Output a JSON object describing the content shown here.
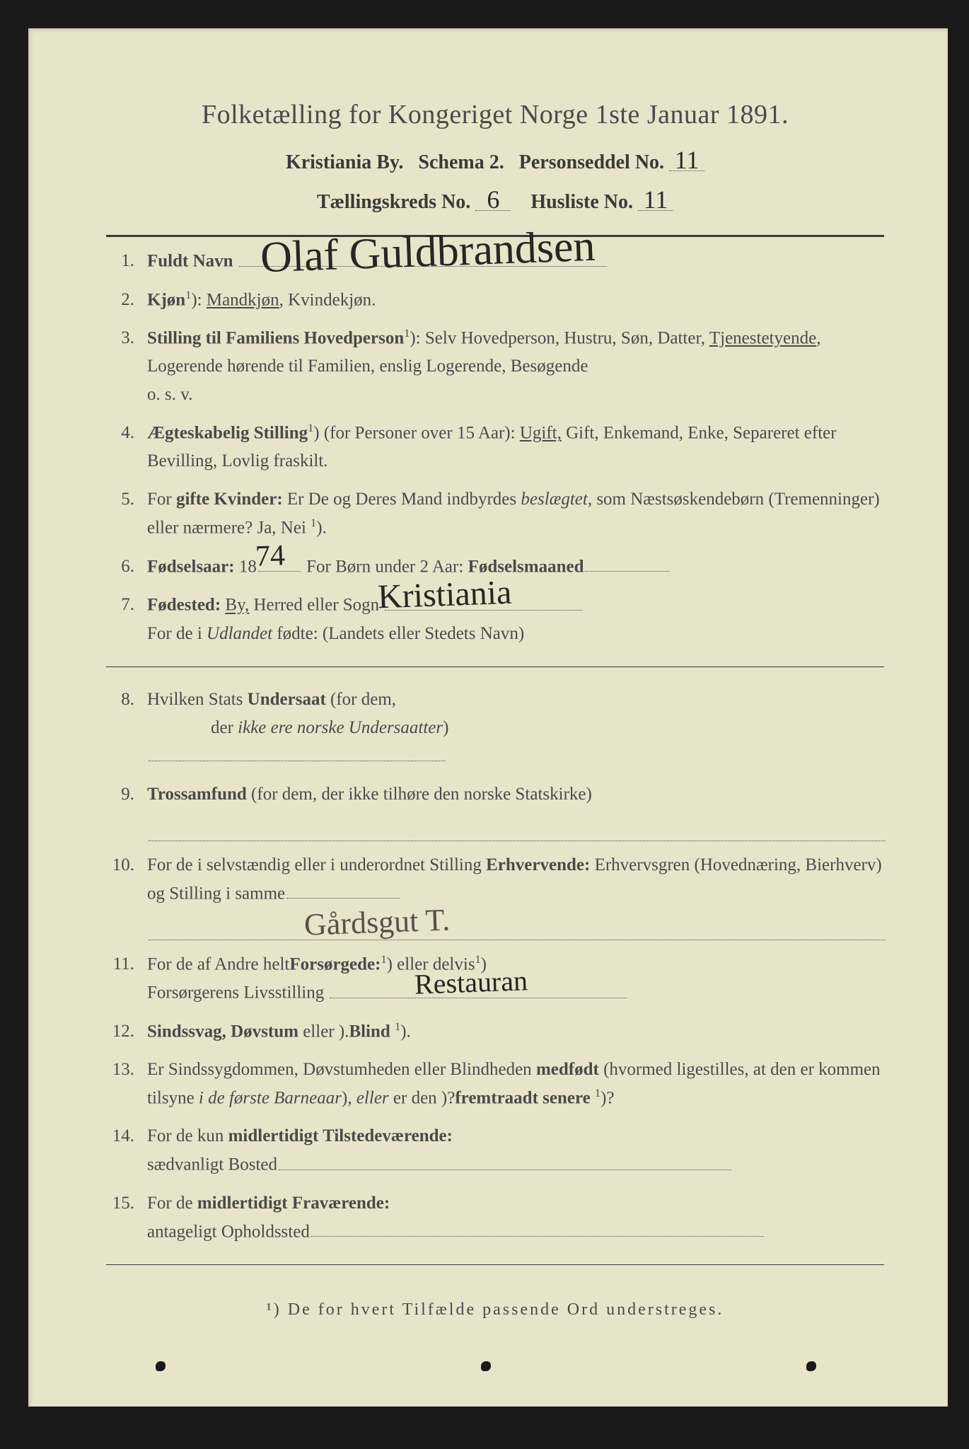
{
  "colors": {
    "paper_bg": "#e8e4ca",
    "frame_bg": "#1a1a1a",
    "print_text": "#4a4a48",
    "ink_text": "#2a2520",
    "divider": "#3a3a38"
  },
  "typography": {
    "title_size_pt": 38,
    "body_size_pt": 25,
    "handwriting_family": "Brush Script MT"
  },
  "header": {
    "title": "Folketælling for Kongeriget Norge 1ste Januar 1891.",
    "city": "Kristiania By.",
    "schema": "Schema 2.",
    "person_label": "Personseddel No.",
    "person_no": "11",
    "district_label": "Tællingskreds No.",
    "district_no": "6",
    "houselist_label": "Husliste No.",
    "houselist_no": "11"
  },
  "responses": {
    "name": "Olaf Guldbrandsen",
    "birth_year_suffix": "74",
    "birthplace": "Kristiania",
    "occupation": "Gårdsgut T.",
    "provider": "Restauran"
  },
  "fields": [
    {
      "num": "1.",
      "label_bold": "Fuldt Navn",
      "has_name": true
    },
    {
      "num": "2.",
      "label_bold": "Kjøn",
      "sup": "1",
      "rest": "): ",
      "options_html": "<span class='underline'>Mandkjøn</span>, Kvindekjøn."
    },
    {
      "num": "3.",
      "label_bold": "Stilling til Familiens Hovedperson",
      "sup": "1",
      "rest": "): Selv Hovedperson, Hustru, Søn, Datter, <span class='underline'>Tjenestetyende</span>, Logerende hørende til Familien, enslig Logerende, Besøgende<br>o. s. v."
    },
    {
      "num": "4.",
      "label_bold": "Ægteskabelig Stilling",
      "sup": "1",
      "rest": ") (for Personer over 15 Aar): <span class='underline'>Ugift,</span> Gift, Enkemand, Enke, Separeret efter Bevilling, Lovlig fraskilt."
    },
    {
      "num": "5.",
      "plain": "For ",
      "label_bold": "gifte Kvinder:",
      "rest": " Er De og Deres Mand indbyrdes <span class='ital'>beslægtet</span>, som Næstsøskendebørn (Tremenninger) eller nærmere?  Ja, Nei <span class='sup'>1</span>)."
    },
    {
      "num": "6.",
      "label_bold": "Fødselsaar:",
      "year_prefix": " 18",
      "year_fill": true,
      "rest2": "  For Børn under 2 Aar: ",
      "label_bold2": "Fødselsmaaned",
      "trail_dots": true
    },
    {
      "num": "7.",
      "label_bold": "Fødested:",
      "rest_html": " <span class='underline'>By,</span> Herred eller Sogn ",
      "place_fill": true,
      "line2": "For de i <span class='ital'>Udlandet</span> fødte: (Landets eller Stedets Navn)"
    },
    {
      "num": "8.",
      "plain": "Hvilken Stats ",
      "label_bold": "Undersaat",
      "rest": " (for dem,<br><span class='indent'>der <span class='ital'>ikke ere norske Undersaatter</span>)</span>",
      "trail_dots_long": true
    },
    {
      "num": "9.",
      "label_bold": "Trossamfund",
      "rest": "  (for dem, der ikke tilhøre den norske Statskirke)",
      "trail_dots_full": true
    },
    {
      "num": "10.",
      "plain": "For de i selvstændig eller i underordnet Stilling ",
      "label_bold": "Erhvervende:",
      "rest": " Erhvervsgren (Hovednæring, Bierhverv) og Stilling i samme",
      "occupation_lines": true
    },
    {
      "num": "11.",
      "plain": "For de af Andre helt",
      "sup": "1",
      "rest": ") eller delvis<span class='sup'>1</span>) ",
      "label_bold": "Forsørgede:",
      "line2_plain": "Forsørgerens Livsstilling ",
      "provider_fill": true
    },
    {
      "num": "12.",
      "label_bold": "Sindssvag, Døvstum",
      "rest": " eller ",
      "label_bold2": "Blind",
      "sup2": "1",
      "rest2": ")."
    },
    {
      "num": "13.",
      "plain": "Er Sindssygdommen, Døvstumheden eller Blindheden ",
      "label_bold": "medfødt",
      "rest": " (hvormed ligestilles, at den er kommen tilsyne <span class='ital'>i de første Barneaar</span>), <span class='ital'>eller</span> er den ",
      "label_bold2": "fremtraadt senere",
      "sup2": "1",
      "rest2": ")?"
    },
    {
      "num": "14.",
      "plain": "For de kun ",
      "label_bold": "midlertidigt Tilstedeværende:",
      "line2_plain": "sædvanligt Bosted",
      "trail_dots_full": true
    },
    {
      "num": "15.",
      "plain": "For de ",
      "label_bold": "midlertidigt Fraværende:",
      "line2_plain": "antageligt Opholdssted",
      "trail_dots_full": true
    }
  ],
  "footnote": "¹) De for hvert Tilfælde passende Ord understreges."
}
